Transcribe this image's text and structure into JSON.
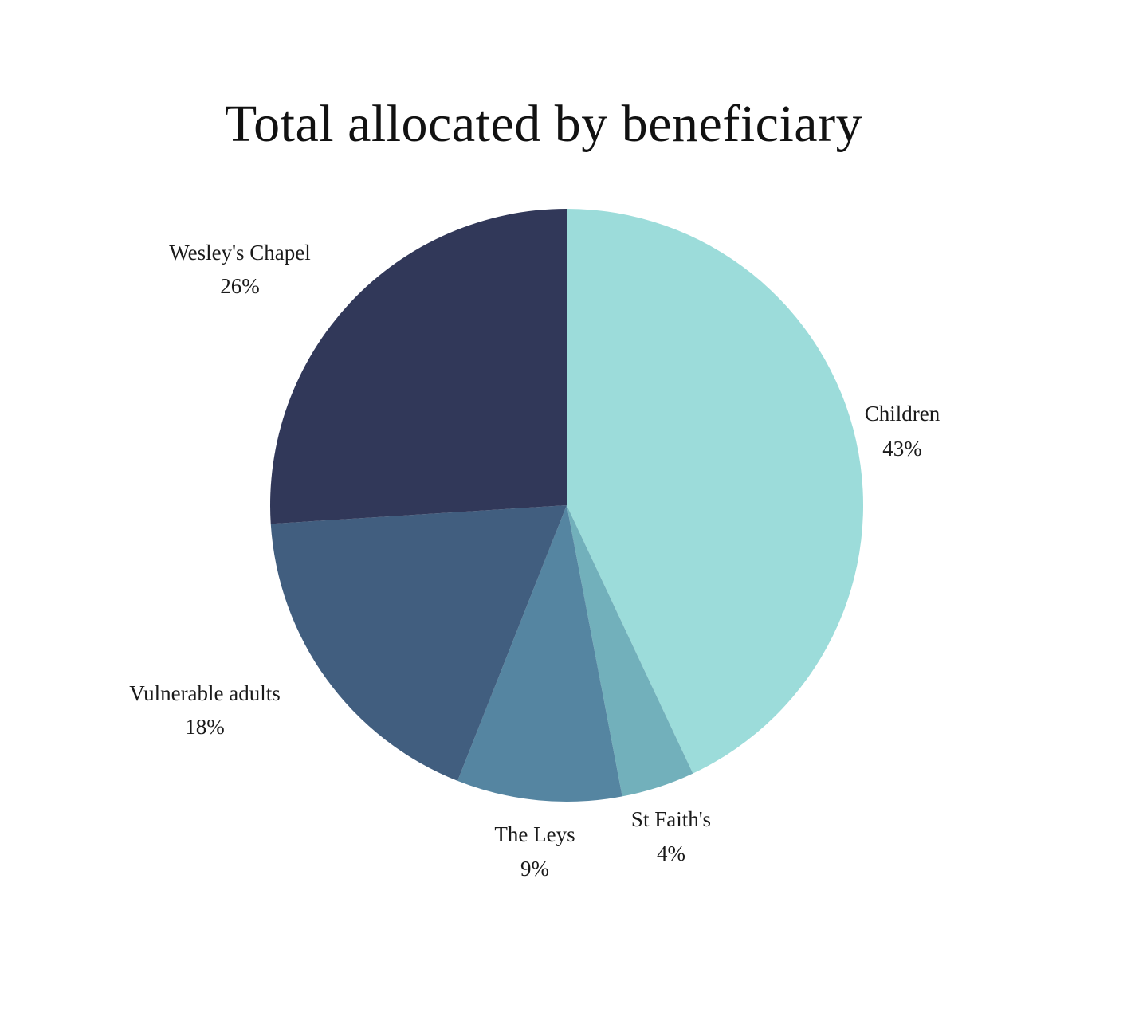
{
  "chart_data": {
    "type": "pie",
    "title": "Total allocated by beneficiary",
    "slices": [
      {
        "label": "Children",
        "value": 43,
        "value_label": "43%",
        "color": "#9cdcda"
      },
      {
        "label": "St Faith's",
        "value": 4,
        "value_label": "4%",
        "color": "#72b0bb"
      },
      {
        "label": "The Leys",
        "value": 9,
        "value_label": "9%",
        "color": "#5585a1"
      },
      {
        "label": "Vulnerable adults",
        "value": 18,
        "value_label": "18%",
        "color": "#415e7f"
      },
      {
        "label": "Wesley's Chapel",
        "value": 26,
        "value_label": "26%",
        "color": "#313859"
      }
    ],
    "start_angle": "12 o'clock",
    "direction": "clockwise",
    "legend": "none"
  }
}
